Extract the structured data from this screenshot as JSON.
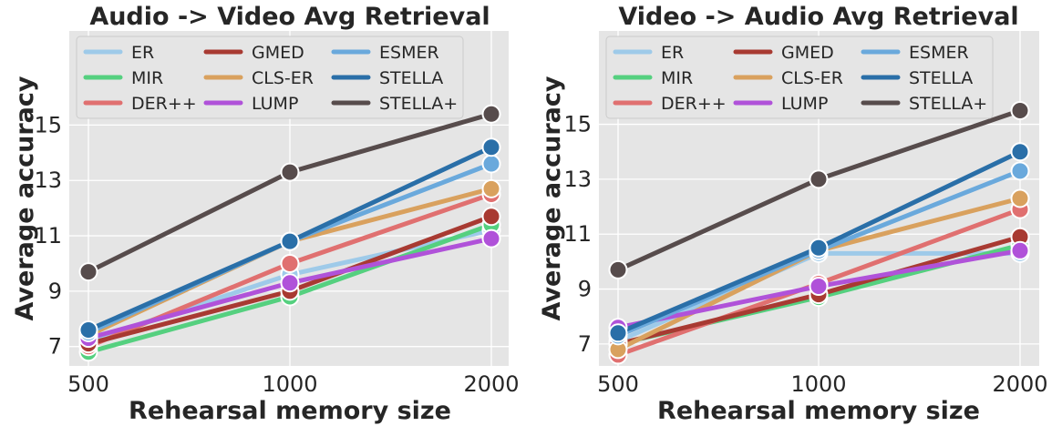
{
  "chart_data": [
    {
      "type": "line",
      "title": "Audio -> Video Avg Retrieval",
      "xlabel": "Rehearsal memory size",
      "ylabel": "Average accuracy",
      "x": [
        500,
        1000,
        2000
      ],
      "x_ticks": [
        "500",
        "1000",
        "2000"
      ],
      "y_ticks": [
        "7",
        "9",
        "11",
        "13",
        "15"
      ],
      "ylim": [
        6.3,
        18.4
      ],
      "grid": true,
      "legend_position": "top",
      "series": [
        {
          "name": "ER",
          "color": "#9ecae9",
          "values": [
            7.2,
            9.6,
            11.2
          ]
        },
        {
          "name": "MIR",
          "color": "#55d07f",
          "values": [
            6.8,
            8.8,
            11.4
          ]
        },
        {
          "name": "DER++",
          "color": "#e07070",
          "values": [
            7.0,
            10.0,
            12.5
          ]
        },
        {
          "name": "GMED",
          "color": "#a83a32",
          "values": [
            7.1,
            9.0,
            11.7
          ]
        },
        {
          "name": "CLS-ER",
          "color": "#d9a15e",
          "values": [
            7.4,
            10.8,
            12.7
          ]
        },
        {
          "name": "LUMP",
          "color": "#b052d9",
          "values": [
            7.3,
            9.3,
            10.9
          ]
        },
        {
          "name": "ESMER",
          "color": "#6aa9dc",
          "values": [
            7.5,
            10.8,
            13.6
          ]
        },
        {
          "name": "STELLA",
          "color": "#2a6fa8",
          "values": [
            7.6,
            10.8,
            14.2
          ]
        },
        {
          "name": "STELLA+",
          "color": "#574c4c",
          "values": [
            9.7,
            13.3,
            15.4
          ]
        }
      ]
    },
    {
      "type": "line",
      "title": "Video -> Audio Avg Retrieval",
      "xlabel": "Rehearsal memory size",
      "ylabel": "Average accuracy",
      "x": [
        500,
        1000,
        2000
      ],
      "x_ticks": [
        "500",
        "1000",
        "2000"
      ],
      "y_ticks": [
        "7",
        "9",
        "11",
        "13",
        "15"
      ],
      "ylim": [
        6.2,
        18.4
      ],
      "grid": true,
      "legend_position": "top",
      "series": [
        {
          "name": "ER",
          "color": "#9ecae9",
          "values": [
            7.1,
            10.3,
            10.3
          ]
        },
        {
          "name": "MIR",
          "color": "#55d07f",
          "values": [
            7.0,
            8.7,
            10.6
          ]
        },
        {
          "name": "DER++",
          "color": "#e07070",
          "values": [
            6.6,
            9.2,
            11.9
          ]
        },
        {
          "name": "GMED",
          "color": "#a83a32",
          "values": [
            7.0,
            8.8,
            10.9
          ]
        },
        {
          "name": "CLS-ER",
          "color": "#d9a15e",
          "values": [
            6.8,
            10.4,
            12.3
          ]
        },
        {
          "name": "LUMP",
          "color": "#b052d9",
          "values": [
            7.6,
            9.1,
            10.4
          ]
        },
        {
          "name": "ESMER",
          "color": "#6aa9dc",
          "values": [
            7.3,
            10.4,
            13.3
          ]
        },
        {
          "name": "STELLA",
          "color": "#2a6fa8",
          "values": [
            7.4,
            10.5,
            14.0
          ]
        },
        {
          "name": "STELLA+",
          "color": "#574c4c",
          "values": [
            9.7,
            13.0,
            15.5
          ]
        }
      ]
    }
  ]
}
